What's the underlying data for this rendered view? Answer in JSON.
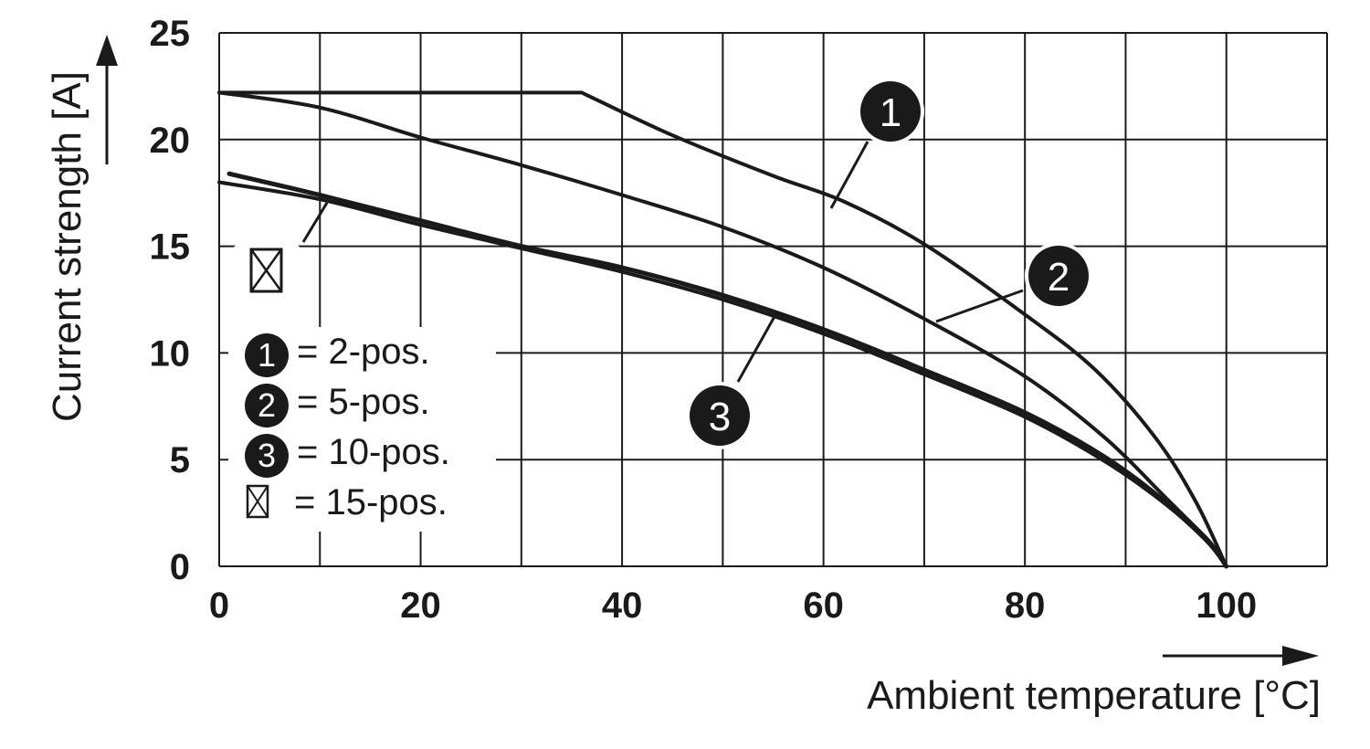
{
  "chart_data": {
    "type": "line",
    "xlabel": "Ambient temperature [°C]",
    "ylabel": "Current strength [A]",
    "xlim": [
      0,
      110
    ],
    "ylim": [
      0,
      25
    ],
    "x_ticks": [
      "0",
      "20",
      "40",
      "60",
      "80",
      "100"
    ],
    "y_ticks": [
      "0",
      "5",
      "10",
      "15",
      "20",
      "25"
    ],
    "grid": true,
    "legend_position": "left",
    "series": [
      {
        "name": "2-pos.",
        "marker": "1",
        "x": [
          0,
          36,
          45,
          55,
          62,
          70,
          80,
          87,
          93,
          97,
          100
        ],
        "y": [
          22.2,
          22.2,
          20.2,
          18.3,
          17.1,
          15.1,
          11.8,
          9.2,
          6.0,
          3.0,
          0
        ]
      },
      {
        "name": "5-pos.",
        "marker": "2",
        "x": [
          0,
          10,
          20,
          30,
          40,
          50,
          60,
          70,
          80,
          88,
          94,
          98,
          100
        ],
        "y": [
          22.2,
          21.5,
          20.1,
          18.8,
          17.4,
          15.9,
          14.0,
          11.6,
          8.9,
          6.0,
          3.2,
          1.3,
          0
        ]
      },
      {
        "name": "10-pos.",
        "marker": "3",
        "x": [
          1,
          10,
          20,
          30,
          40,
          50,
          60,
          70,
          80,
          88,
          94,
          98,
          100
        ],
        "y": [
          18.4,
          17.4,
          16.2,
          15.0,
          14.0,
          12.7,
          11.1,
          9.2,
          7.2,
          5.1,
          3.0,
          1.3,
          0
        ]
      },
      {
        "name": "15-pos.",
        "marker": "⊠",
        "x": [
          0,
          10,
          20,
          30,
          40,
          50,
          60,
          70,
          80,
          88,
          94,
          98,
          100
        ],
        "y": [
          18.0,
          17.2,
          16.0,
          14.9,
          13.8,
          12.5,
          10.9,
          9.0,
          7.0,
          4.9,
          2.9,
          1.2,
          0
        ]
      }
    ],
    "legend": [
      {
        "marker": "1",
        "text": "= 2-pos."
      },
      {
        "marker": "2",
        "text": "= 5-pos."
      },
      {
        "marker": "3",
        "text": "= 10-pos."
      },
      {
        "marker": "⊠",
        "text": "= 15-pos."
      }
    ],
    "callouts": [
      "1",
      "2",
      "3"
    ]
  }
}
